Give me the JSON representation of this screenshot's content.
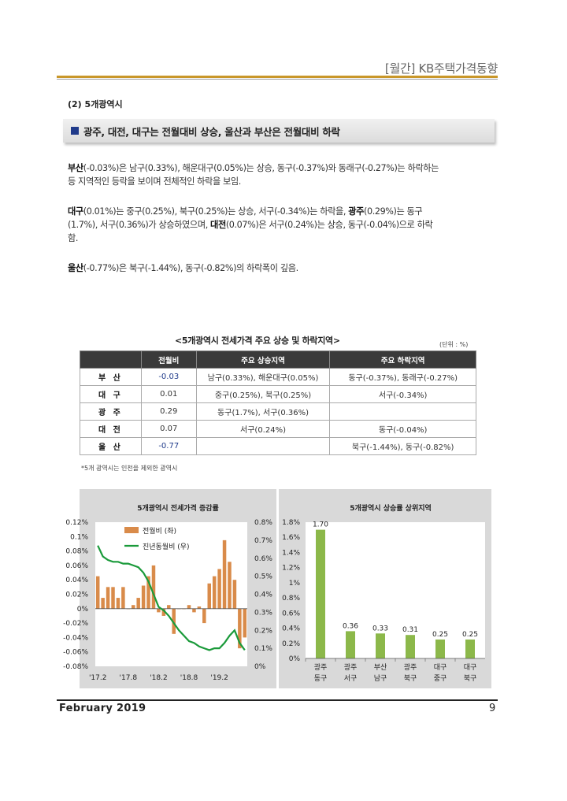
{
  "header": {
    "title": "[월간] KB주택가격동향"
  },
  "section_title": "(2) 5개광역시",
  "banner": "광주, 대전, 대구는 전월대비 상승, 울산과 부산은 전월대비 하락",
  "paragraphs": {
    "p1_lead": "부산",
    "p1_line1": "(-0.03%)은 남구(0.33%), 해운대구(0.05%)는 상승, 동구(-0.37%)와 동래구(-0.27%)는 하락하는",
    "p1_line2": "등 지역적인 등락을 보이며 전체적인 하락을 보임.",
    "p2_lead": "대구",
    "p2_line1_a": "(0.01%)는 중구(0.25%), 북구(0.25%)는 상승, 서구(-0.34%)는 하락을,",
    "p2_lead2": "광주",
    "p2_line1_b": "(0.29%)는 동구",
    "p2_line2_a": "(1.7%), 서구(0.36%)가 상승하였으며,",
    "p2_lead3": "대전",
    "p2_line2_b": "(0.07%)은 서구(0.24%)는 상승, 동구(-0.04%)으로 하락",
    "p2_line3": "함.",
    "p3_lead": "울산",
    "p3_line1": "(-0.77%)은 북구(-1.44%), 동구(-0.82%)의 하락폭이 깊음."
  },
  "table": {
    "title": "<5개광역시 전세가격 주요 상승 및 하락지역>",
    "unit": "(단위 : %)",
    "headers": [
      "",
      "전월비",
      "주요 상승지역",
      "주요 하락지역"
    ],
    "rows": [
      [
        "부 산",
        "-0.03",
        "남구(0.33%), 해운대구(0.05%)",
        "동구(-0.37%), 동래구(-0.27%)"
      ],
      [
        "대 구",
        "0.01",
        "중구(0.25%), 북구(0.25%)",
        "서구(-0.34%)"
      ],
      [
        "광 주",
        "0.29",
        "동구(1.7%), 서구(0.36%)",
        ""
      ],
      [
        "대 전",
        "0.07",
        "서구(0.24%)",
        "동구(-0.04%)"
      ],
      [
        "울 산",
        "-0.77",
        "",
        "북구(-1.44%), 동구(-0.82%)"
      ]
    ],
    "note": "*5개 광역시는 인천을 제외한 광역시"
  },
  "chart_data": [
    {
      "type": "bar",
      "title": "5개광역시 전세가격 증감률",
      "x_tick_labels": [
        "'17.2",
        "'17.8",
        "'18.2",
        "'18.8",
        "'19.2"
      ],
      "left_axis": {
        "ylim": [
          -0.08,
          0.12
        ],
        "ticks": [
          "0.12%",
          "0.1%",
          "0.08%",
          "0.06%",
          "0.04%",
          "0.02%",
          "0%",
          "-0.02%",
          "-0.04%",
          "-0.06%",
          "-0.08%"
        ]
      },
      "right_axis": {
        "ylim": [
          0,
          0.8
        ],
        "ticks": [
          "0.8%",
          "0.7%",
          "0.6%",
          "0.5%",
          "0.4%",
          "0.3%",
          "0.2%",
          "0.1%",
          "0%"
        ]
      },
      "legend_placement": "top-left",
      "series": [
        {
          "name": "전월비 (좌)",
          "type": "bar",
          "color": "#d98b4a",
          "values": [
            0.045,
            0.015,
            0.03,
            0.03,
            0.015,
            0.03,
            0.0,
            0.005,
            0.015,
            0.032,
            0.045,
            0.06,
            -0.005,
            -0.01,
            0.005,
            -0.035,
            0.0,
            0.0,
            0.005,
            -0.005,
            0.003,
            -0.02,
            0.035,
            0.045,
            0.055,
            0.095,
            0.065,
            0.04,
            -0.055,
            -0.04
          ]
        },
        {
          "name": "진년동월비 (우)",
          "type": "line",
          "color": "#1a9a3a",
          "values": [
            0.67,
            0.61,
            0.59,
            0.58,
            0.58,
            0.57,
            0.57,
            0.56,
            0.55,
            0.52,
            0.47,
            0.4,
            0.33,
            0.31,
            0.28,
            0.24,
            0.2,
            0.17,
            0.14,
            0.13,
            0.11,
            0.1,
            0.09,
            0.1,
            0.1,
            0.13,
            0.17,
            0.2,
            0.13,
            0.09
          ]
        }
      ]
    },
    {
      "type": "bar",
      "title": "5개광역시 상승률 상위지역",
      "categories": [
        "광주\n동구",
        "광주\n서구",
        "부산\n남구",
        "광주\n북구",
        "대구\n중구",
        "대구\n북구"
      ],
      "category_lines": [
        [
          "광주",
          "동구"
        ],
        [
          "광주",
          "서구"
        ],
        [
          "부산",
          "남구"
        ],
        [
          "광주",
          "북구"
        ],
        [
          "대구",
          "중구"
        ],
        [
          "대구",
          "북구"
        ]
      ],
      "values": [
        1.7,
        0.36,
        0.33,
        0.31,
        0.25,
        0.25
      ],
      "value_labels": [
        "1.70",
        "0.36",
        "0.33",
        "0.31",
        "0.25",
        "0.25"
      ],
      "ylim": [
        0,
        1.8
      ],
      "y_ticks": [
        "1.8%",
        "1.6%",
        "1.4%",
        "1.2%",
        "1%",
        "0.8%",
        "0.6%",
        "0.4%",
        "0.2%",
        "0%"
      ],
      "color": "#8cb84a"
    }
  ],
  "footer": {
    "month": "February 2019",
    "page": "9"
  }
}
